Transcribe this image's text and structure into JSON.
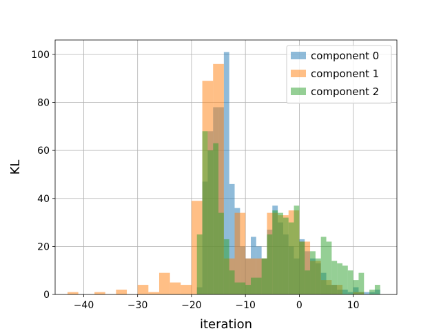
{
  "chart_data": {
    "type": "histogram",
    "xlabel": "iteration",
    "ylabel": "KL",
    "xlim": [
      -45.3,
      18.1
    ],
    "ylim": [
      0,
      106
    ],
    "xticks": [
      -40,
      -30,
      -20,
      -10,
      0,
      10
    ],
    "yticks": [
      0,
      20,
      40,
      60,
      80,
      100
    ],
    "grid": true,
    "legend_position": "top-right",
    "series": [
      {
        "name": "component 0",
        "color": "#1f77b4",
        "bins": [
          [
            -19,
            -18,
            3
          ],
          [
            -18,
            -17,
            47
          ],
          [
            -17,
            -16,
            68
          ],
          [
            -16,
            -15,
            78
          ],
          [
            -15,
            -14,
            78
          ],
          [
            -14,
            -13,
            101
          ],
          [
            -13,
            -12,
            46
          ],
          [
            -12,
            -11,
            36
          ],
          [
            -11,
            -10,
            20
          ],
          [
            -10,
            -9,
            15
          ],
          [
            -9,
            -8,
            24
          ],
          [
            -8,
            -7,
            20
          ],
          [
            -7,
            -6,
            15
          ],
          [
            -6,
            -5,
            27
          ],
          [
            -5,
            -4,
            37
          ],
          [
            -4,
            -3,
            30
          ],
          [
            -3,
            -2,
            25
          ],
          [
            -2,
            -1,
            20
          ],
          [
            -1,
            0,
            15
          ],
          [
            0,
            1,
            23
          ],
          [
            1,
            2,
            18
          ],
          [
            2,
            3,
            15
          ],
          [
            3,
            4,
            13
          ],
          [
            4,
            5,
            9
          ],
          [
            5,
            6,
            4
          ],
          [
            6,
            7,
            4
          ],
          [
            7,
            8,
            2
          ],
          [
            8,
            9,
            2
          ],
          [
            9,
            10,
            1
          ],
          [
            10,
            11,
            3
          ],
          [
            11,
            12,
            1
          ],
          [
            12,
            13,
            1
          ],
          [
            13,
            14,
            1
          ],
          [
            14,
            15,
            2
          ]
        ]
      },
      {
        "name": "component 1",
        "color": "#ff7f0e",
        "bins": [
          [
            -43,
            -41,
            1
          ],
          [
            -38,
            -36,
            1
          ],
          [
            -34,
            -32,
            2
          ],
          [
            -30,
            -28,
            4
          ],
          [
            -28,
            -26,
            1
          ],
          [
            -26,
            -24,
            9
          ],
          [
            -24,
            -22,
            5
          ],
          [
            -22,
            -20,
            4
          ],
          [
            -20,
            -18,
            39
          ],
          [
            -18,
            -16,
            89
          ],
          [
            -16,
            -14,
            96
          ],
          [
            -14,
            -12,
            15
          ],
          [
            -12,
            -10,
            34
          ],
          [
            -10,
            -8,
            15
          ],
          [
            -8,
            -6,
            15
          ],
          [
            -6,
            -4,
            34
          ],
          [
            -4,
            -2,
            33
          ],
          [
            -2,
            0,
            35
          ],
          [
            0,
            2,
            22
          ],
          [
            2,
            4,
            14
          ],
          [
            4,
            6,
            6
          ],
          [
            6,
            8,
            4
          ],
          [
            8,
            10,
            0
          ],
          [
            10,
            12,
            1
          ],
          [
            12,
            14,
            0
          ],
          [
            14,
            16,
            0
          ]
        ]
      },
      {
        "name": "component 2",
        "color": "#2ca02c",
        "bins": [
          [
            -19,
            -18,
            25
          ],
          [
            -18,
            -17,
            68
          ],
          [
            -17,
            -16,
            60
          ],
          [
            -16,
            -15,
            63
          ],
          [
            -15,
            -14,
            34
          ],
          [
            -14,
            -13,
            23
          ],
          [
            -13,
            -12,
            10
          ],
          [
            -12,
            -11,
            5
          ],
          [
            -11,
            -10,
            5
          ],
          [
            -10,
            -9,
            4
          ],
          [
            -9,
            -8,
            7
          ],
          [
            -8,
            -7,
            7
          ],
          [
            -7,
            -6,
            15
          ],
          [
            -6,
            -5,
            25
          ],
          [
            -5,
            -4,
            35
          ],
          [
            -4,
            -3,
            34
          ],
          [
            -3,
            -2,
            32
          ],
          [
            -2,
            -1,
            30
          ],
          [
            -1,
            0,
            37
          ],
          [
            0,
            1,
            22
          ],
          [
            1,
            2,
            10
          ],
          [
            2,
            3,
            18
          ],
          [
            3,
            4,
            15
          ],
          [
            4,
            5,
            24
          ],
          [
            5,
            6,
            22
          ],
          [
            6,
            7,
            14
          ],
          [
            7,
            8,
            13
          ],
          [
            8,
            9,
            12
          ],
          [
            9,
            10,
            10
          ],
          [
            10,
            11,
            6
          ],
          [
            11,
            12,
            9
          ],
          [
            12,
            13,
            0
          ],
          [
            13,
            14,
            2
          ],
          [
            14,
            15,
            4
          ]
        ]
      }
    ]
  }
}
